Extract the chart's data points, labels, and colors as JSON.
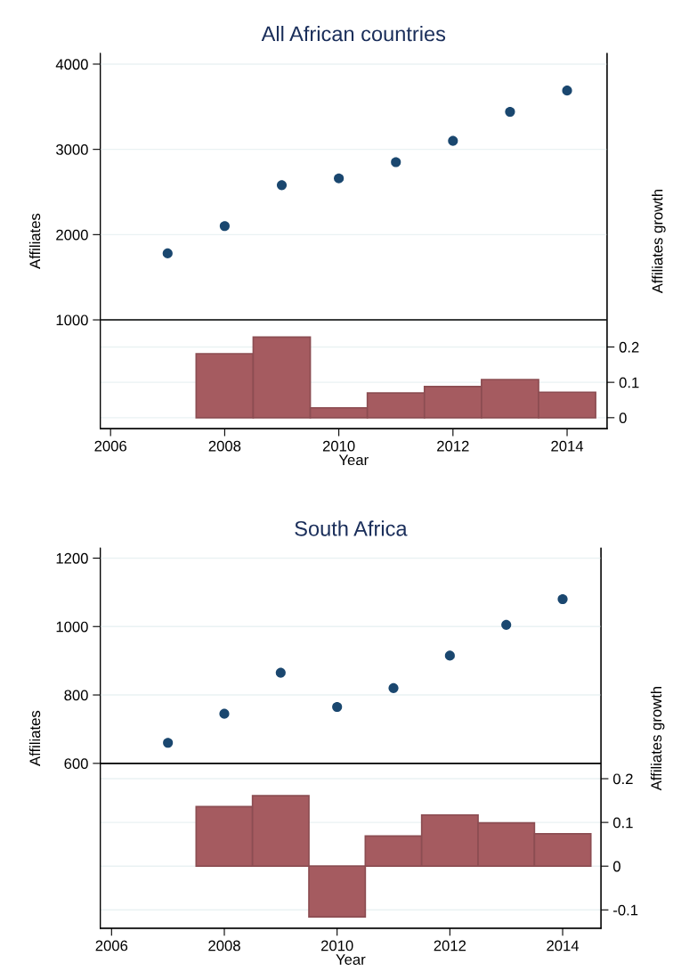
{
  "chart_data": [
    {
      "type": "scatter",
      "title": "All African countries",
      "xlabel": "Year",
      "ylabel": "Affiliates",
      "y2label": "Affiliates growth",
      "x": [
        2007,
        2008,
        2009,
        2010,
        2011,
        2012,
        2013,
        2014
      ],
      "series": [
        {
          "color": "#1a476f",
          "values": [
            1780,
            2100,
            2580,
            2660,
            2850,
            3100,
            3440,
            3690
          ]
        },
        {
          "type": "bar",
          "axis": "y2",
          "color": "#a55b60",
          "values": [
            null,
            0.181,
            0.228,
            0.028,
            0.07,
            0.088,
            0.108,
            0.072
          ]
        }
      ],
      "xlim": [
        2005.82,
        2014.7
      ],
      "xticks": [
        2006,
        2008,
        2010,
        2012,
        2014
      ],
      "ylim": [
        -276,
        4125
      ],
      "yticks": [
        1000,
        2000,
        3000,
        4000
      ],
      "y2lim": [
        -0.031,
        1.03
      ],
      "y2ticks": [
        0,
        0.1,
        0.2
      ],
      "ref_lines": [
        {
          "axis": "y",
          "value": 1000,
          "color": "#000000"
        }
      ],
      "grid": "y",
      "marker": "circle"
    },
    {
      "type": "scatter",
      "title": "South Africa",
      "xlabel": "Year",
      "ylabel": "Affiliates",
      "y2label": "Affiliates growth",
      "x": [
        2007,
        2008,
        2009,
        2010,
        2011,
        2012,
        2013,
        2014
      ],
      "series": [
        {
          "color": "#1a476f",
          "values": [
            660,
            745,
            865,
            765,
            820,
            915,
            1005,
            1080
          ]
        },
        {
          "type": "bar",
          "axis": "y2",
          "color": "#a55b60",
          "values": [
            null,
            0.136,
            0.161,
            -0.116,
            0.069,
            0.117,
            0.099,
            0.074
          ]
        }
      ],
      "xlim": [
        2005.8,
        2014.68
      ],
      "xticks": [
        2006,
        2008,
        2010,
        2012,
        2014
      ],
      "ylim": [
        118,
        1229
      ],
      "yticks": [
        600,
        800,
        1000,
        1200
      ],
      "y2lim": [
        -0.142,
        0.727
      ],
      "y2ticks": [
        -0.1,
        0,
        0.1,
        0.2
      ],
      "ref_lines": [
        {
          "axis": "y",
          "value": 600,
          "color": "#000000"
        }
      ],
      "grid": "y",
      "marker": "circle"
    }
  ]
}
